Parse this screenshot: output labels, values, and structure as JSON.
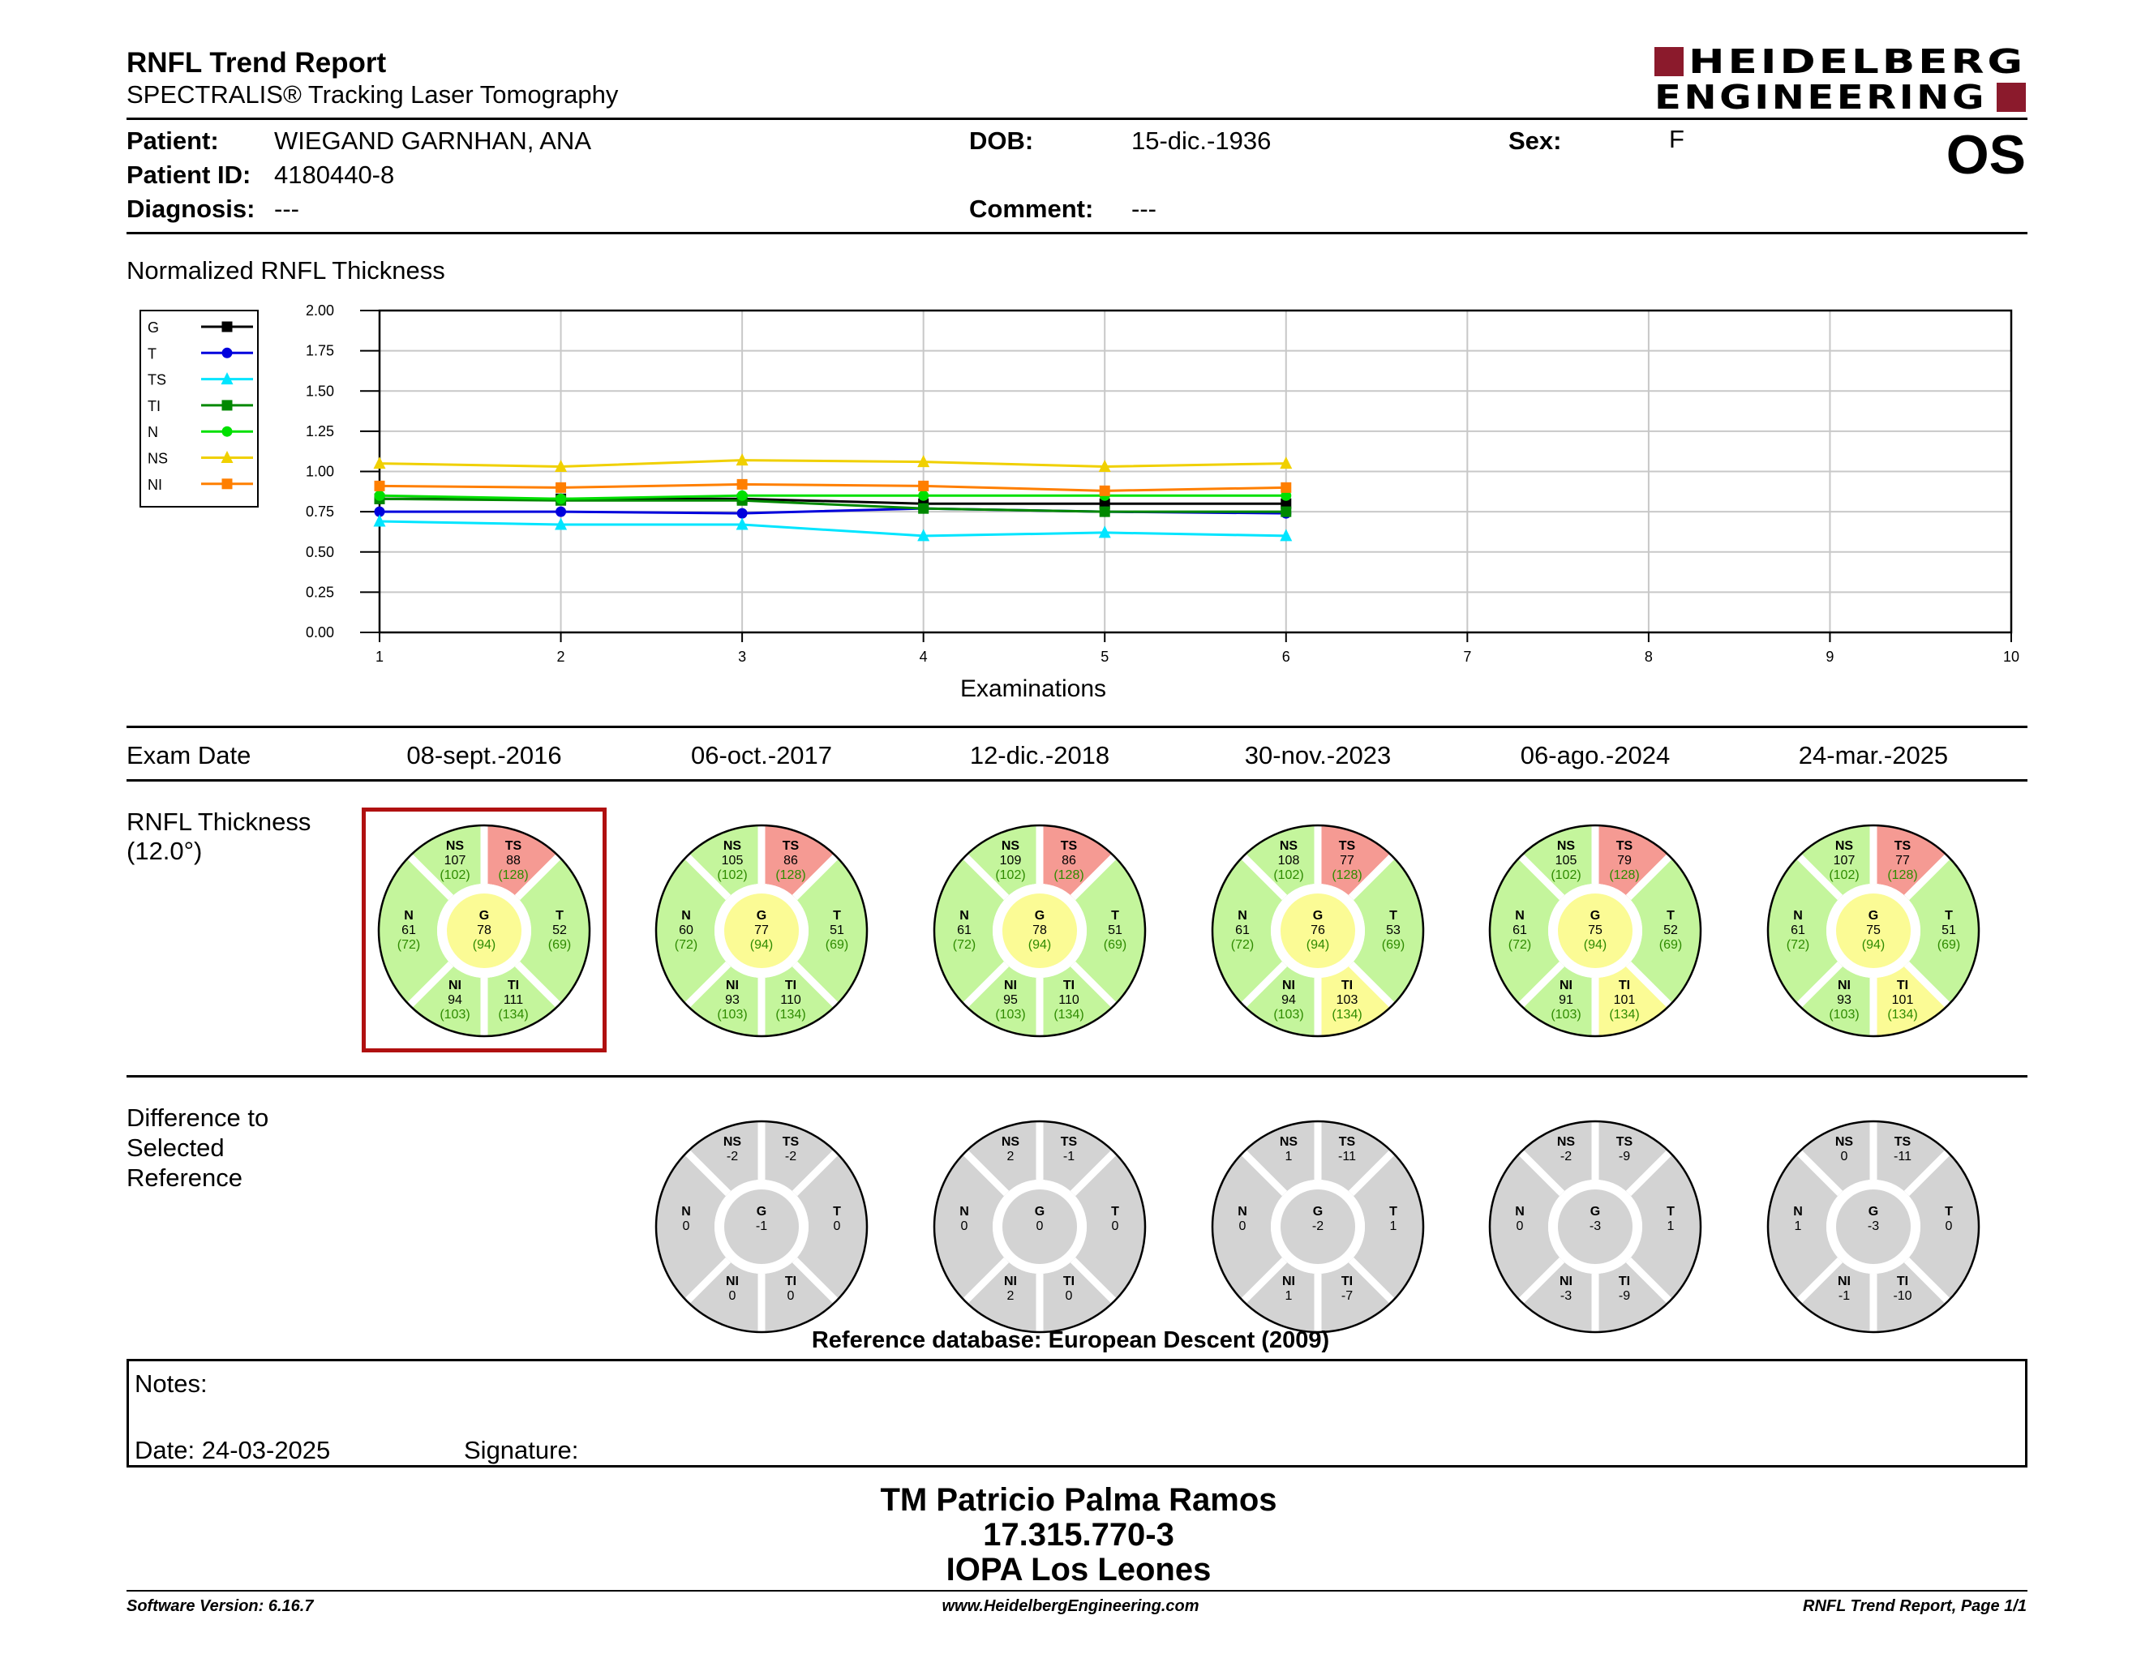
{
  "header": {
    "title": "RNFL Trend Report",
    "subtitle": "SPECTRALIS® Tracking Laser Tomography",
    "logo_line1": "HEIDELBERG",
    "logo_line2": "ENGINEERING",
    "eye": "OS"
  },
  "patient": {
    "patient_label": "Patient:",
    "patient_value": "WIEGAND GARNHAN, ANA",
    "id_label": "Patient ID:",
    "id_value": "4180440-8",
    "diagnosis_label": "Diagnosis:",
    "diagnosis_value": "---",
    "dob_label": "DOB:",
    "dob_value": "15-dic.-1936",
    "comment_label": "Comment:",
    "comment_value": "---",
    "sex_label": "Sex:",
    "sex_value": "F"
  },
  "chart_title": "Normalized RNFL Thickness",
  "chart_data": {
    "type": "line",
    "xlabel": "Examinations",
    "ylabel": "",
    "x": [
      1,
      2,
      3,
      4,
      5,
      6
    ],
    "xlim": [
      1,
      10
    ],
    "ylim": [
      0,
      2
    ],
    "xticks": [
      "1",
      "2",
      "3",
      "4",
      "5",
      "6",
      "7",
      "8",
      "9",
      "10"
    ],
    "yticks": [
      "0.00",
      "0.25",
      "0.50",
      "0.75",
      "1.00",
      "1.25",
      "1.50",
      "1.75",
      "2.00"
    ],
    "grid": true,
    "legend_position": "left",
    "series": [
      {
        "name": "G",
        "color": "#000000",
        "marker": "square",
        "values": [
          0.83,
          0.83,
          0.83,
          0.8,
          0.8,
          0.8
        ]
      },
      {
        "name": "T",
        "color": "#0000dd",
        "marker": "circle",
        "values": [
          0.75,
          0.75,
          0.74,
          0.77,
          0.75,
          0.74
        ]
      },
      {
        "name": "TS",
        "color": "#00e5ff",
        "marker": "triangle",
        "values": [
          0.69,
          0.67,
          0.67,
          0.6,
          0.62,
          0.6
        ]
      },
      {
        "name": "TI",
        "color": "#008800",
        "marker": "square",
        "values": [
          0.83,
          0.82,
          0.82,
          0.77,
          0.75,
          0.75
        ]
      },
      {
        "name": "N",
        "color": "#00e000",
        "marker": "circle",
        "values": [
          0.85,
          0.83,
          0.85,
          0.85,
          0.85,
          0.85
        ]
      },
      {
        "name": "NS",
        "color": "#f0d000",
        "marker": "triangle",
        "values": [
          1.05,
          1.03,
          1.07,
          1.06,
          1.03,
          1.05
        ]
      },
      {
        "name": "NI",
        "color": "#ff7f00",
        "marker": "square",
        "values": [
          0.91,
          0.9,
          0.92,
          0.91,
          0.88,
          0.9
        ]
      }
    ]
  },
  "exam_date_label": "Exam Date",
  "exam_dates": [
    "08-sept.-2016",
    "06-oct.-2017",
    "12-dic.-2018",
    "30-nov.-2023",
    "06-ago.-2024",
    "24-mar.-2025"
  ],
  "rnfl_label_1": "RNFL Thickness",
  "rnfl_label_2": "(12.0°)",
  "diff_label_1": "Difference to",
  "diff_label_2": "Selected",
  "diff_label_3": "Reference",
  "selected_reference_index": 0,
  "colors": {
    "normal": "#c4f59c",
    "borderline": "#fbfb95",
    "outside": "#f59a93",
    "difference": "#d3d3d3",
    "ref_frame": "#b01010",
    "norm_text": "#2e8b00"
  },
  "sector_labels": {
    "NS": "NS",
    "TS": "TS",
    "N": "N",
    "G": "G",
    "T": "T",
    "NI": "NI",
    "TI": "TI"
  },
  "thickness": [
    {
      "NS": {
        "v": "107",
        "n": "(102)",
        "c": "normal"
      },
      "TS": {
        "v": "88",
        "n": "(128)",
        "c": "outside"
      },
      "N": {
        "v": "61",
        "n": "(72)",
        "c": "normal"
      },
      "G": {
        "v": "78",
        "n": "(94)",
        "c": "borderline"
      },
      "T": {
        "v": "52",
        "n": "(69)",
        "c": "normal"
      },
      "NI": {
        "v": "94",
        "n": "(103)",
        "c": "normal"
      },
      "TI": {
        "v": "111",
        "n": "(134)",
        "c": "normal"
      }
    },
    {
      "NS": {
        "v": "105",
        "n": "(102)",
        "c": "normal"
      },
      "TS": {
        "v": "86",
        "n": "(128)",
        "c": "outside"
      },
      "N": {
        "v": "60",
        "n": "(72)",
        "c": "normal"
      },
      "G": {
        "v": "77",
        "n": "(94)",
        "c": "borderline"
      },
      "T": {
        "v": "51",
        "n": "(69)",
        "c": "normal"
      },
      "NI": {
        "v": "93",
        "n": "(103)",
        "c": "normal"
      },
      "TI": {
        "v": "110",
        "n": "(134)",
        "c": "normal"
      }
    },
    {
      "NS": {
        "v": "109",
        "n": "(102)",
        "c": "normal"
      },
      "TS": {
        "v": "86",
        "n": "(128)",
        "c": "outside"
      },
      "N": {
        "v": "61",
        "n": "(72)",
        "c": "normal"
      },
      "G": {
        "v": "78",
        "n": "(94)",
        "c": "borderline"
      },
      "T": {
        "v": "51",
        "n": "(69)",
        "c": "normal"
      },
      "NI": {
        "v": "95",
        "n": "(103)",
        "c": "normal"
      },
      "TI": {
        "v": "110",
        "n": "(134)",
        "c": "normal"
      }
    },
    {
      "NS": {
        "v": "108",
        "n": "(102)",
        "c": "normal"
      },
      "TS": {
        "v": "77",
        "n": "(128)",
        "c": "outside"
      },
      "N": {
        "v": "61",
        "n": "(72)",
        "c": "normal"
      },
      "G": {
        "v": "76",
        "n": "(94)",
        "c": "borderline"
      },
      "T": {
        "v": "53",
        "n": "(69)",
        "c": "normal"
      },
      "NI": {
        "v": "94",
        "n": "(103)",
        "c": "normal"
      },
      "TI": {
        "v": "103",
        "n": "(134)",
        "c": "borderline"
      }
    },
    {
      "NS": {
        "v": "105",
        "n": "(102)",
        "c": "normal"
      },
      "TS": {
        "v": "79",
        "n": "(128)",
        "c": "outside"
      },
      "N": {
        "v": "61",
        "n": "(72)",
        "c": "normal"
      },
      "G": {
        "v": "75",
        "n": "(94)",
        "c": "borderline"
      },
      "T": {
        "v": "52",
        "n": "(69)",
        "c": "normal"
      },
      "NI": {
        "v": "91",
        "n": "(103)",
        "c": "normal"
      },
      "TI": {
        "v": "101",
        "n": "(134)",
        "c": "borderline"
      }
    },
    {
      "NS": {
        "v": "107",
        "n": "(102)",
        "c": "normal"
      },
      "TS": {
        "v": "77",
        "n": "(128)",
        "c": "outside"
      },
      "N": {
        "v": "61",
        "n": "(72)",
        "c": "normal"
      },
      "G": {
        "v": "75",
        "n": "(94)",
        "c": "borderline"
      },
      "T": {
        "v": "51",
        "n": "(69)",
        "c": "normal"
      },
      "NI": {
        "v": "93",
        "n": "(103)",
        "c": "normal"
      },
      "TI": {
        "v": "101",
        "n": "(134)",
        "c": "borderline"
      }
    }
  ],
  "difference": [
    null,
    {
      "NS": "-2",
      "TS": "-2",
      "N": "0",
      "G": "-1",
      "T": "0",
      "NI": "0",
      "TI": "0"
    },
    {
      "NS": "2",
      "TS": "-1",
      "N": "0",
      "G": "0",
      "T": "0",
      "NI": "2",
      "TI": "0"
    },
    {
      "NS": "1",
      "TS": "-11",
      "N": "0",
      "G": "-2",
      "T": "1",
      "NI": "1",
      "TI": "-7"
    },
    {
      "NS": "-2",
      "TS": "-9",
      "N": "0",
      "G": "-3",
      "T": "1",
      "NI": "-3",
      "TI": "-9"
    },
    {
      "NS": "0",
      "TS": "-11",
      "N": "1",
      "G": "-3",
      "T": "0",
      "NI": "-1",
      "TI": "-10"
    }
  ],
  "reference_db": "Reference database: European Descent (2009)",
  "notes": {
    "notes_label": "Notes:",
    "date_label": "Date: 24-03-2025",
    "signature_label": "Signature:"
  },
  "signature_block": {
    "name": "TM Patricio Palma Ramos",
    "id": "17.315.770-3",
    "org": "IOPA Los Leones"
  },
  "footer": {
    "software": "Software Version: 6.16.7",
    "website": "www.HeidelbergEngineering.com",
    "page": "RNFL Trend Report, Page 1/1"
  }
}
